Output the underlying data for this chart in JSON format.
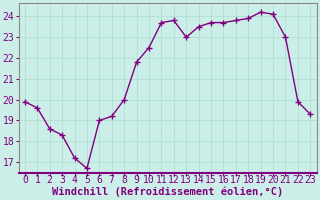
{
  "x": [
    0,
    1,
    2,
    3,
    4,
    5,
    6,
    7,
    8,
    9,
    10,
    11,
    12,
    13,
    14,
    15,
    16,
    17,
    18,
    19,
    20,
    21,
    22,
    23
  ],
  "y": [
    19.9,
    19.6,
    18.6,
    18.3,
    17.2,
    16.7,
    19.0,
    19.2,
    20.0,
    21.8,
    22.5,
    23.7,
    23.8,
    23.0,
    23.5,
    23.7,
    23.7,
    23.8,
    23.9,
    24.2,
    24.1,
    23.0,
    19.9,
    19.3
  ],
  "line_color": "#800080",
  "marker": "+",
  "markersize": 4,
  "linewidth": 1.0,
  "bg_color": "#cceee8",
  "plot_bg_color": "#cceee8",
  "grid_color": "#aaddcc",
  "xlabel": "Windchill (Refroidissement éolien,°C)",
  "xlabel_color": "#800080",
  "xlabel_fontsize": 7.5,
  "xtick_labels": [
    "0",
    "1",
    "2",
    "3",
    "4",
    "5",
    "6",
    "7",
    "8",
    "9",
    "10",
    "11",
    "12",
    "13",
    "14",
    "15",
    "16",
    "17",
    "18",
    "19",
    "20",
    "21",
    "22",
    "23"
  ],
  "ytick_labels": [
    "17",
    "18",
    "19",
    "20",
    "21",
    "22",
    "23",
    "24"
  ],
  "ytick_vals": [
    17,
    18,
    19,
    20,
    21,
    22,
    23,
    24
  ],
  "ylim": [
    16.5,
    24.65
  ],
  "xlim": [
    -0.5,
    23.5
  ],
  "tick_color": "#800080",
  "tick_fontsize": 7,
  "spine_color": "#888888",
  "bottom_line_color": "#800080"
}
